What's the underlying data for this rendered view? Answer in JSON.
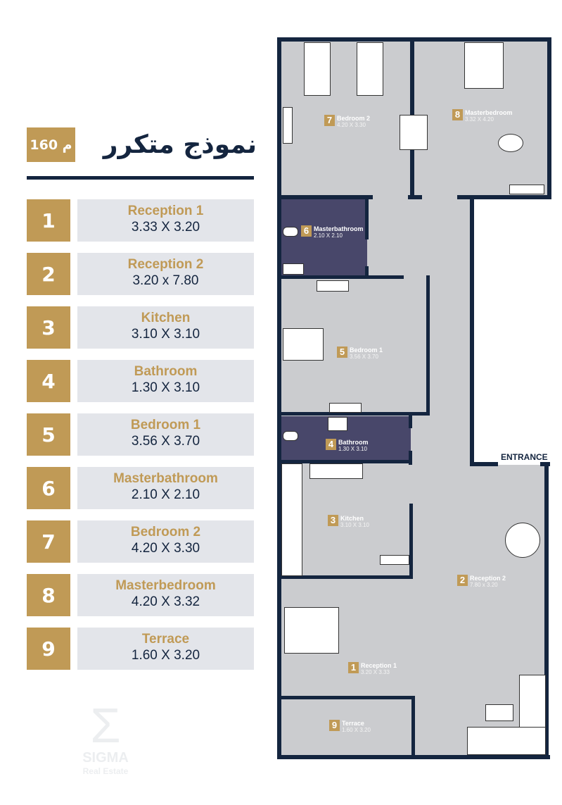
{
  "header": {
    "title": "نموذج متكرر",
    "area": "160 م"
  },
  "rooms": [
    {
      "num": "1",
      "name": "Reception 1",
      "dims": "3.33 X 3.20",
      "plan_dims": "3.20 X 3.33"
    },
    {
      "num": "2",
      "name": "Reception 2",
      "dims": "3.20 x 7.80",
      "plan_dims": "7.80 x 3.20"
    },
    {
      "num": "3",
      "name": "Kitchen",
      "dims": "3.10 X 3.10",
      "plan_dims": "3.10 X 3.10"
    },
    {
      "num": "4",
      "name": "Bathroom",
      "dims": "1.30 X 3.10",
      "plan_dims": "1.30 X 3.10"
    },
    {
      "num": "5",
      "name": "Bedroom 1",
      "dims": "3.56 X 3.70",
      "plan_dims": "3.56 X 3.70"
    },
    {
      "num": "6",
      "name": "Masterbathroom",
      "dims": "2.10 X 2.10",
      "plan_dims": "2.10 X 2.10"
    },
    {
      "num": "7",
      "name": "Bedroom 2",
      "dims": "4.20 X 3.30",
      "plan_dims": "4.20 X 3.30"
    },
    {
      "num": "8",
      "name": "Masterbedroom",
      "dims": "4.20 X 3.32",
      "plan_dims": "3.32 X 4.20"
    },
    {
      "num": "9",
      "name": "Terrace",
      "dims": "1.60 X 3.20",
      "plan_dims": "1.60 X 3.20"
    }
  ],
  "plan": {
    "entrance_label": "ENTRANCE"
  },
  "logo": {
    "symbol": "Σ",
    "name": "SIGMA",
    "sub": "Real Estate"
  },
  "colors": {
    "gold": "#c09a56",
    "navy": "#14253f",
    "room_fill": "#cbcccf",
    "wet_room_fill": "#48476a",
    "label_bg": "#e3e5ea"
  }
}
